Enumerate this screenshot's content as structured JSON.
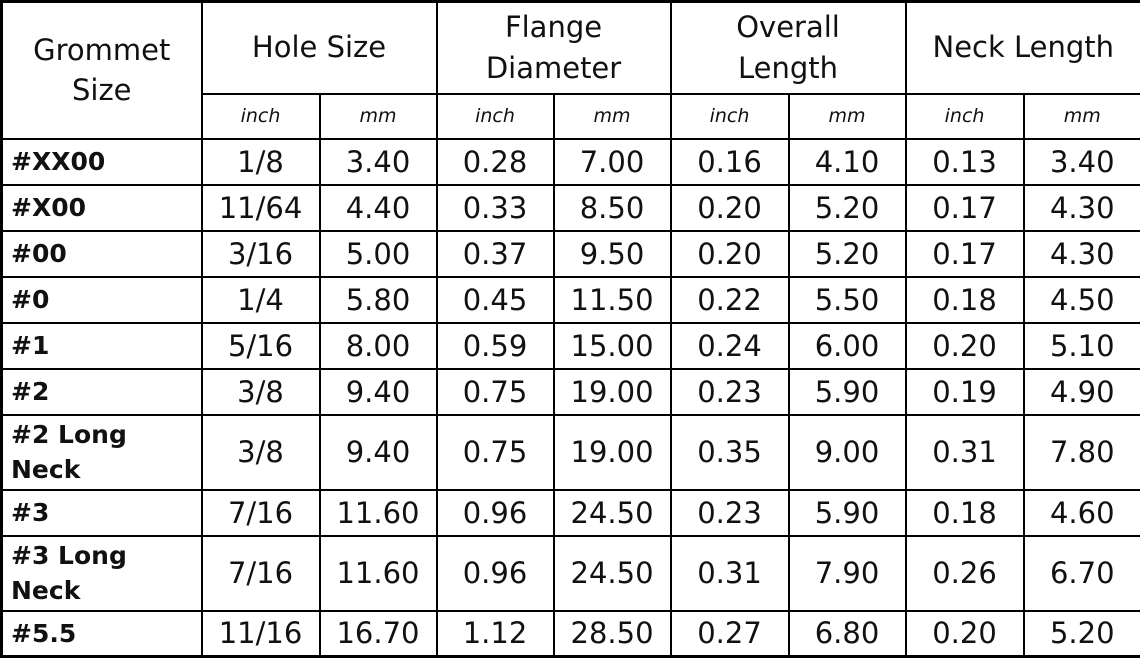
{
  "table": {
    "header": {
      "group_labels": [
        "Grommet Size",
        "Hole Size",
        "Flange Diameter",
        "Overall Length",
        "Neck Length"
      ],
      "unit_labels": [
        "inch",
        "mm",
        "inch",
        "mm",
        "inch",
        "mm",
        "inch",
        "mm"
      ]
    },
    "rows": [
      [
        "#XX00",
        "1/8",
        "3.40",
        "0.28",
        "7.00",
        "0.16",
        "4.10",
        "0.13",
        "3.40"
      ],
      [
        "#X00",
        "11/64",
        "4.40",
        "0.33",
        "8.50",
        "0.20",
        "5.20",
        "0.17",
        "4.30"
      ],
      [
        "#00",
        "3/16",
        "5.00",
        "0.37",
        "9.50",
        "0.20",
        "5.20",
        "0.17",
        "4.30"
      ],
      [
        "#0",
        "1/4",
        "5.80",
        "0.45",
        "11.50",
        "0.22",
        "5.50",
        "0.18",
        "4.50"
      ],
      [
        "#1",
        "5/16",
        "8.00",
        "0.59",
        "15.00",
        "0.24",
        "6.00",
        "0.20",
        "5.10"
      ],
      [
        "#2",
        "3/8",
        "9.40",
        "0.75",
        "19.00",
        "0.23",
        "5.90",
        "0.19",
        "4.90"
      ],
      [
        "#2 Long Neck",
        "3/8",
        "9.40",
        "0.75",
        "19.00",
        "0.35",
        "9.00",
        "0.31",
        "7.80"
      ],
      [
        "#3",
        "7/16",
        "11.60",
        "0.96",
        "24.50",
        "0.23",
        "5.90",
        "0.18",
        "4.60"
      ],
      [
        "#3 Long Neck",
        "7/16",
        "11.60",
        "0.96",
        "24.50",
        "0.31",
        "7.90",
        "0.26",
        "6.70"
      ],
      [
        "#5.5",
        "11/16",
        "16.70",
        "1.12",
        "28.50",
        "0.27",
        "6.80",
        "0.20",
        "5.20"
      ]
    ]
  }
}
